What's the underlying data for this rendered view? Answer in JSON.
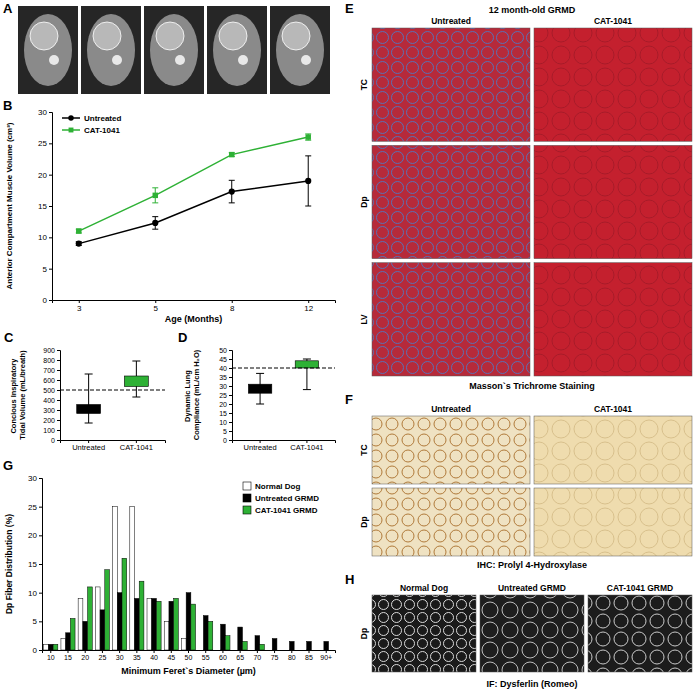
{
  "panel_labels": [
    "A",
    "B",
    "C",
    "D",
    "E",
    "F",
    "G",
    "H"
  ],
  "chart_data": [
    {
      "type": "line",
      "categories": [
        "3",
        "5",
        "8",
        "12"
      ],
      "xlabel": "Age (Months)",
      "ylabel": "Anterior Compartment Muscle Volume (cm³)",
      "ylim": [
        0,
        30
      ],
      "yticks": [
        0,
        5,
        10,
        15,
        20,
        25,
        30
      ],
      "grid": false,
      "legend": "top-left",
      "series": [
        {
          "name": "Untreated",
          "color": "#000000",
          "marker": "circle",
          "values": [
            9,
            12.3,
            17.3,
            19
          ],
          "errors": [
            0.3,
            1,
            1.8,
            4
          ]
        },
        {
          "name": "CAT-1041",
          "color": "#2eb135",
          "marker": "square",
          "values": [
            11,
            16.7,
            23.2,
            26
          ],
          "errors": [
            0.3,
            1.2,
            0.3,
            0.5
          ]
        }
      ]
    },
    {
      "type": "box",
      "categories": [
        "Untreated",
        "CAT-1041"
      ],
      "colors": [
        "#000000",
        "#2eb135"
      ],
      "ylabel": "Concious Inspiratory Tidal Volume (mL/breath)",
      "ylim": [
        0,
        900
      ],
      "yticks": [
        0,
        100,
        200,
        300,
        400,
        500,
        600,
        700,
        800,
        900
      ],
      "min": [
        170,
        430
      ],
      "q1": [
        265,
        535
      ],
      "q3": [
        355,
        640
      ],
      "max": [
        660,
        790
      ],
      "reference_value": 500,
      "line_style": "dashed"
    },
    {
      "type": "box",
      "categories": [
        "Untreated",
        "CAT-1041"
      ],
      "colors": [
        "#000000",
        "#2eb135"
      ],
      "ylabel": "Dynamic Lung Compliance (mL/cm H₂O)",
      "ylim": [
        0,
        50
      ],
      "yticks": [
        0,
        5,
        10,
        15,
        20,
        25,
        30,
        35,
        40,
        45,
        50
      ],
      "min": [
        20,
        28
      ],
      "q1": [
        26,
        40
      ],
      "q3": [
        31,
        44
      ],
      "max": [
        37,
        45
      ],
      "reference_value": 40,
      "line_style": "dashed"
    },
    {
      "type": "bar",
      "categories": [
        "10",
        "15",
        "20",
        "25",
        "30",
        "35",
        "40",
        "45",
        "50",
        "55",
        "60",
        "65",
        "70",
        "75",
        "80",
        "85",
        "90+"
      ],
      "xlabel": "Minimum Feret`s Diameter (µm)",
      "ylabel": "Dp Fiber Distribution (%)",
      "ylim": [
        0,
        30
      ],
      "yticks": [
        0,
        5,
        10,
        15,
        20,
        25,
        30
      ],
      "grid": false,
      "legend": "top-right",
      "series": [
        {
          "name": "Normal Dog",
          "color": "#ffffff",
          "values": [
            1,
            2,
            9,
            11,
            25,
            25,
            9,
            5,
            2,
            0,
            0,
            0,
            0,
            0,
            0,
            0,
            0
          ]
        },
        {
          "name": "Untreated GRMD",
          "color": "#000000",
          "values": [
            1,
            3,
            5,
            7,
            10,
            9,
            9,
            8.5,
            10,
            6,
            4.5,
            4,
            2.5,
            2,
            1.5,
            1.5,
            1.5
          ]
        },
        {
          "name": "CAT-1041 GRMD",
          "color": "#2eb135",
          "values": [
            1,
            5.5,
            11,
            14,
            16,
            12,
            8.5,
            9,
            8,
            5,
            2.5,
            1.5,
            1,
            0,
            0,
            0,
            0
          ]
        }
      ]
    }
  ],
  "histology": [
    {
      "title": "12 month-old GRMD",
      "columns": [
        "Untreated",
        "CAT-1041"
      ],
      "rows": [
        "TC",
        "Dp",
        "LV"
      ],
      "caption": "Masson`s Trichrome Staining"
    },
    {
      "columns": [
        "Untreated",
        "CAT-1041"
      ],
      "rows": [
        "TC",
        "Dp"
      ],
      "caption": "IHC: Prolyl 4-Hydroxylase"
    },
    {
      "columns": [
        "Normal Dog",
        "Untreated GRMD",
        "CAT-1041 GRMD"
      ],
      "rows": [
        "Dp"
      ],
      "caption": "IF: Dysferlin (Romeo)"
    }
  ]
}
